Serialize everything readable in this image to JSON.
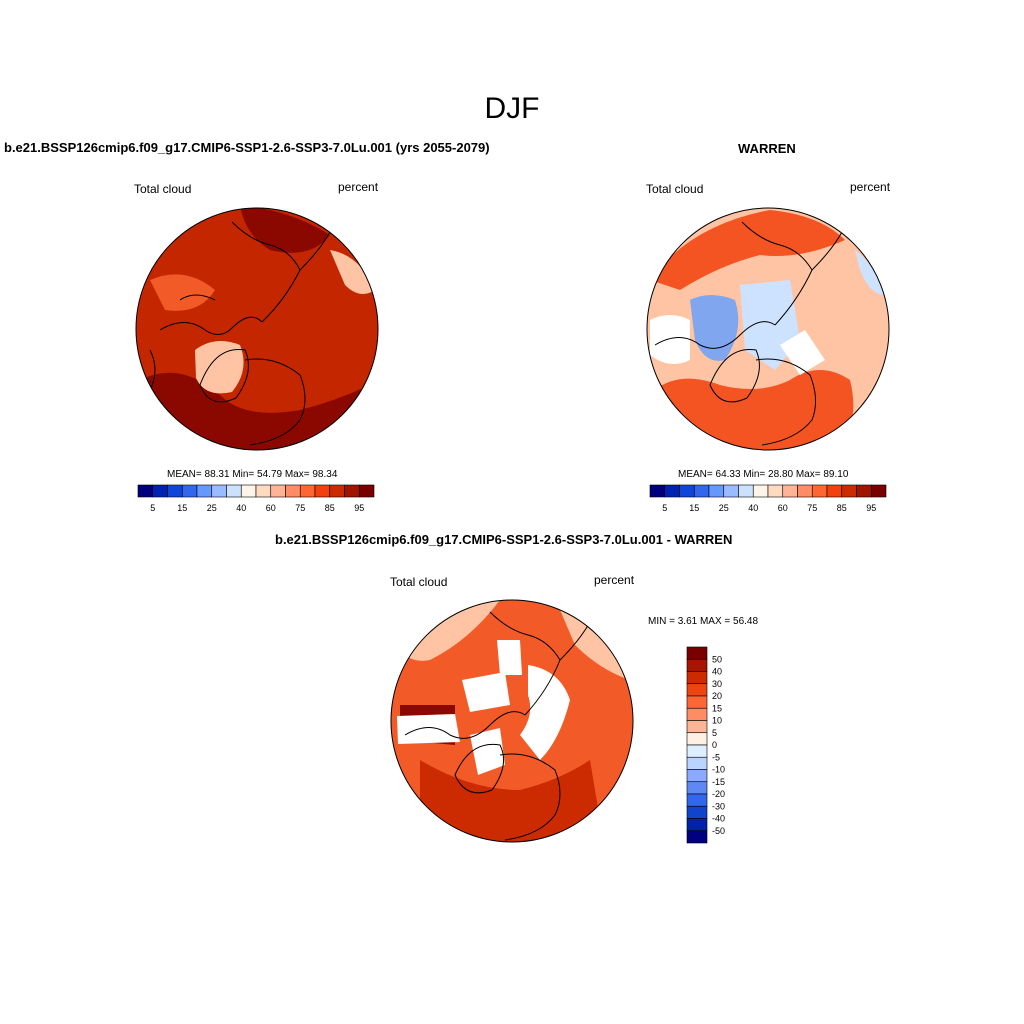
{
  "page": {
    "title": "DJF"
  },
  "panels": {
    "model": {
      "title": "b.e21.BSSP126cmip6.f09_g17.CMIP6-SSP1-2.6-SSP3-7.0Lu.001 (yrs 2055-2079)",
      "left_label": "Total cloud",
      "right_label": "percent",
      "stats": "MEAN=  88.31  Min=  54.79  Max=  98.34"
    },
    "obs": {
      "title": "WARREN",
      "left_label": "Total cloud",
      "right_label": "percent",
      "stats": "MEAN=  64.33  Min=  28.80  Max=  89.10"
    },
    "diff": {
      "title": "b.e21.BSSP126cmip6.f09_g17.CMIP6-SSP1-2.6-SSP3-7.0Lu.001 - WARREN",
      "left_label": "Total cloud",
      "right_label": "percent",
      "stats": "MIN =   3.61 MAX =  56.48"
    }
  },
  "colorbars": {
    "absolute": {
      "colors": [
        "#00007f",
        "#0022b0",
        "#1144d8",
        "#3366ee",
        "#6699ff",
        "#99bbff",
        "#cce0ff",
        "#fff4e8",
        "#ffd9c0",
        "#ffb496",
        "#ff8c64",
        "#ff6633",
        "#f24010",
        "#cc2a00",
        "#a01400",
        "#7a0000"
      ],
      "labels": [
        "5",
        "15",
        "25",
        "40",
        "60",
        "75",
        "85",
        "95"
      ]
    },
    "difference": {
      "colors": [
        "#7a0000",
        "#a81400",
        "#cc2a00",
        "#ee4411",
        "#ff6633",
        "#ff8c64",
        "#ffb496",
        "#fff0e4",
        "#ddeeff",
        "#b8d4ff",
        "#88aaff",
        "#5f88f5",
        "#3366ee",
        "#1144cc",
        "#0022aa",
        "#000080"
      ],
      "labels": [
        "50",
        "40",
        "30",
        "20",
        "15",
        "10",
        "5",
        "0",
        "-5",
        "-10",
        "-15",
        "-20",
        "-30",
        "-40",
        "-50"
      ]
    }
  },
  "map_colors": {
    "model_base": "#c42600",
    "model_dark": "#8a0800",
    "obs_base": "#ffc4a4",
    "obs_red": "#f45422",
    "diff_base": "#f25a28",
    "diff_dark": "#cc2a00",
    "missing": "#ffffff",
    "blue_light": "#cde2ff",
    "blue_mid": "#7fa6ee"
  }
}
